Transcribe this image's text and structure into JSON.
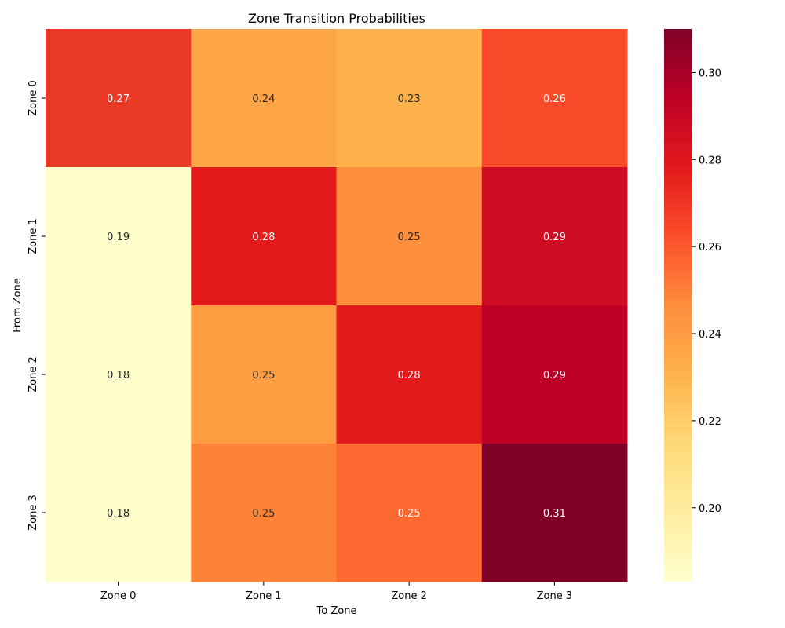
{
  "chart_data": {
    "type": "heatmap",
    "title": "Zone Transition Probabilities",
    "xlabel": "To Zone",
    "ylabel": "From Zone",
    "x_categories": [
      "Zone 0",
      "Zone 1",
      "Zone 2",
      "Zone 3"
    ],
    "y_categories": [
      "Zone 0",
      "Zone 1",
      "Zone 2",
      "Zone 3"
    ],
    "values": [
      [
        0.27,
        0.24,
        0.23,
        0.26
      ],
      [
        0.19,
        0.28,
        0.25,
        0.29
      ],
      [
        0.18,
        0.25,
        0.28,
        0.29
      ],
      [
        0.18,
        0.25,
        0.25,
        0.31
      ]
    ],
    "cell_colors": [
      [
        "#ea3a26",
        "#fda446",
        "#feb24c",
        "#f94b2a"
      ],
      [
        "#ffffcc",
        "#e31a1c",
        "#fd8e3c",
        "#ce0c22"
      ],
      [
        "#ffffcc",
        "#fd9c41",
        "#e31a1c",
        "#bf0026"
      ],
      [
        "#ffffcc",
        "#fd8338",
        "#fc6930",
        "#800026"
      ]
    ],
    "annotations": [
      "0.27",
      "0.24",
      "0.23",
      "0.26",
      "0.19",
      "0.28",
      "0.25",
      "0.29",
      "0.18",
      "0.25",
      "0.28",
      "0.29",
      "0.18",
      "0.25",
      "0.25",
      "0.31"
    ],
    "colorbar": {
      "range": [
        0.183,
        0.31
      ],
      "ticks": [
        0.2,
        0.22,
        0.24,
        0.26,
        0.28,
        0.3
      ],
      "tick_labels": [
        "0.20",
        "0.22",
        "0.24",
        "0.26",
        "0.28",
        "0.30"
      ],
      "colormap": "YlOrRd",
      "stops": [
        "#ffffcc",
        "#ffeda0",
        "#fed976",
        "#feb24c",
        "#fd8d3c",
        "#fc4e2a",
        "#e31a1c",
        "#bd0026",
        "#800026"
      ]
    }
  }
}
